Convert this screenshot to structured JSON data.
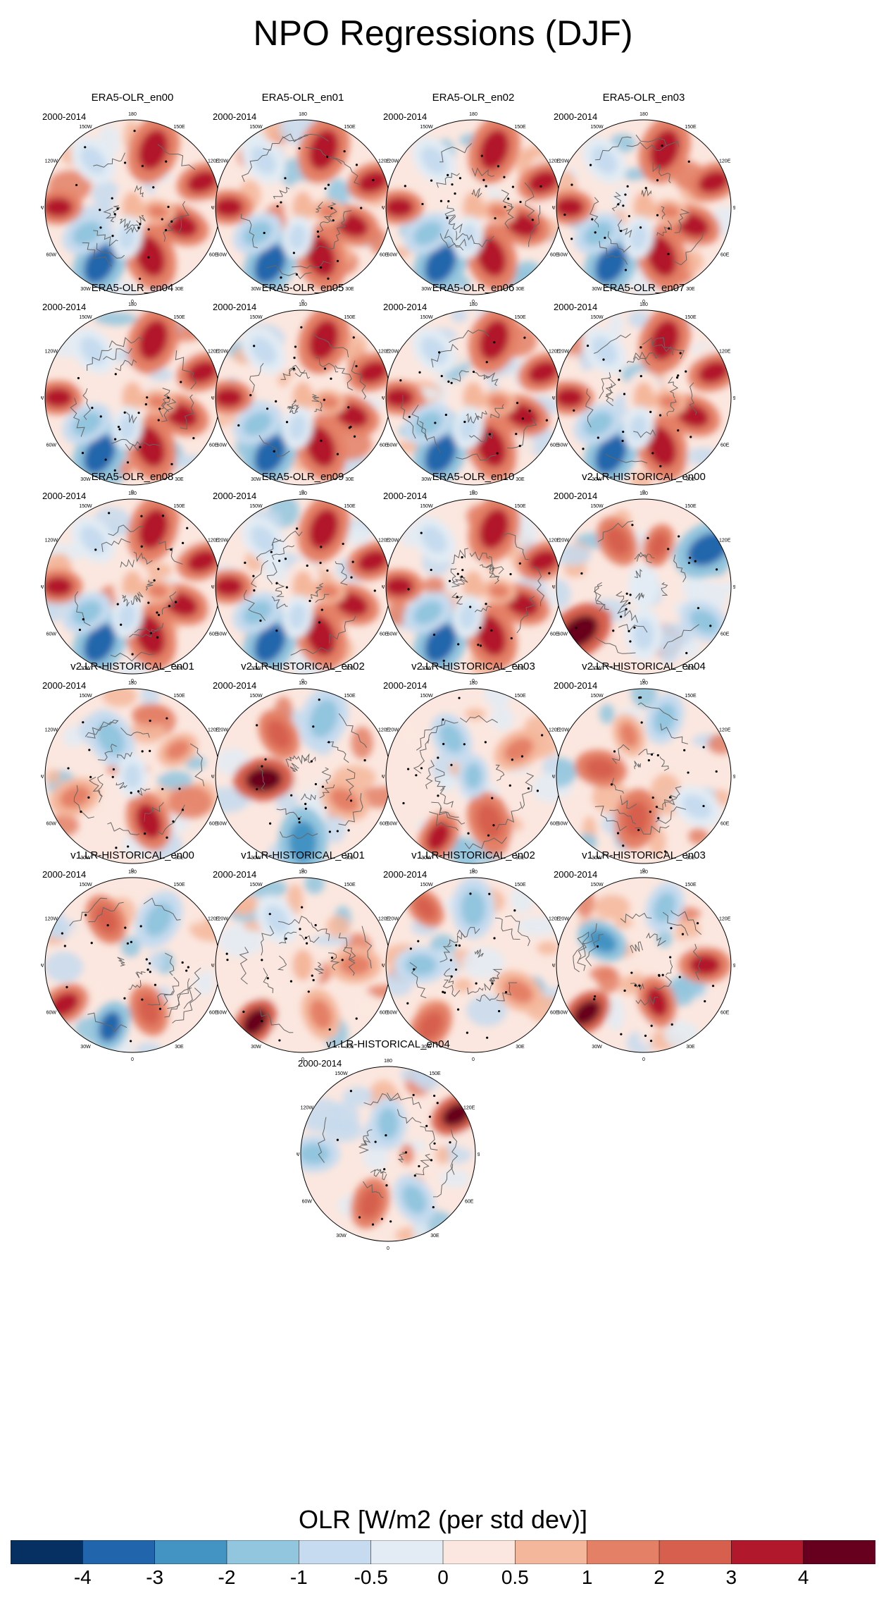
{
  "title": "NPO Regressions (DJF)",
  "chart_data": {
    "type": "heatmap",
    "projection": "north polar stereographic",
    "season": "DJF",
    "period": "2000-2014",
    "panels": [
      {
        "name": "ERA5-OLR_en00",
        "period": "2000-2014",
        "pattern": "era5"
      },
      {
        "name": "ERA5-OLR_en01",
        "period": "2000-2014",
        "pattern": "era5"
      },
      {
        "name": "ERA5-OLR_en02",
        "period": "2000-2014",
        "pattern": "era5"
      },
      {
        "name": "ERA5-OLR_en03",
        "period": "2000-2014",
        "pattern": "era5"
      },
      {
        "name": "ERA5-OLR_en04",
        "period": "2000-2014",
        "pattern": "era5"
      },
      {
        "name": "ERA5-OLR_en05",
        "period": "2000-2014",
        "pattern": "era5"
      },
      {
        "name": "ERA5-OLR_en06",
        "period": "2000-2014",
        "pattern": "era5"
      },
      {
        "name": "ERA5-OLR_en07",
        "period": "2000-2014",
        "pattern": "era5"
      },
      {
        "name": "ERA5-OLR_en08",
        "period": "2000-2014",
        "pattern": "era5"
      },
      {
        "name": "ERA5-OLR_en09",
        "period": "2000-2014",
        "pattern": "era5"
      },
      {
        "name": "ERA5-OLR_en10",
        "period": "2000-2014",
        "pattern": "era5"
      },
      {
        "name": "v2.LR-HISTORICAL_en00",
        "period": "2000-2014",
        "pattern": "v2a"
      },
      {
        "name": "v2.LR-HISTORICAL_en01",
        "period": "2000-2014",
        "pattern": "v2b"
      },
      {
        "name": "v2.LR-HISTORICAL_en02",
        "period": "2000-2014",
        "pattern": "v2c"
      },
      {
        "name": "v2.LR-HISTORICAL_en03",
        "period": "2000-2014",
        "pattern": "v2d"
      },
      {
        "name": "v2.LR-HISTORICAL_en04",
        "period": "2000-2014",
        "pattern": "v2e"
      },
      {
        "name": "v1.LR-HISTORICAL_en00",
        "period": "2000-2014",
        "pattern": "v1a"
      },
      {
        "name": "v1.LR-HISTORICAL_en01",
        "period": "2000-2014",
        "pattern": "v1b"
      },
      {
        "name": "v1.LR-HISTORICAL_en02",
        "period": "2000-2014",
        "pattern": "v1c"
      },
      {
        "name": "v1.LR-HISTORICAL_en03",
        "period": "2000-2014",
        "pattern": "v1d"
      },
      {
        "name": "v1.LR-HISTORICAL_en04",
        "period": "2000-2014",
        "pattern": "v1e"
      }
    ],
    "longitude_labels": [
      "180",
      "150E",
      "120E",
      "90E",
      "60E",
      "30E",
      "0",
      "30W",
      "60W",
      "90W",
      "120W",
      "150W"
    ],
    "colorbar": {
      "title": "OLR [W/m2 (per std dev)]",
      "levels": [
        -4,
        -3,
        -2,
        -1,
        -0.5,
        0,
        0.5,
        1,
        2,
        3,
        4
      ],
      "level_labels": [
        "-4",
        "-3",
        "-2",
        "-1",
        "-0.5",
        "0",
        "0.5",
        "1",
        "2",
        "3",
        "4"
      ],
      "colors": [
        "#053061",
        "#2166ac",
        "#4393c3",
        "#92c5de",
        "#c6dbef",
        "#e3ecf4",
        "#fbe7df",
        "#f4b79b",
        "#e48066",
        "#d6604d",
        "#b2182b",
        "#67001f"
      ]
    }
  }
}
